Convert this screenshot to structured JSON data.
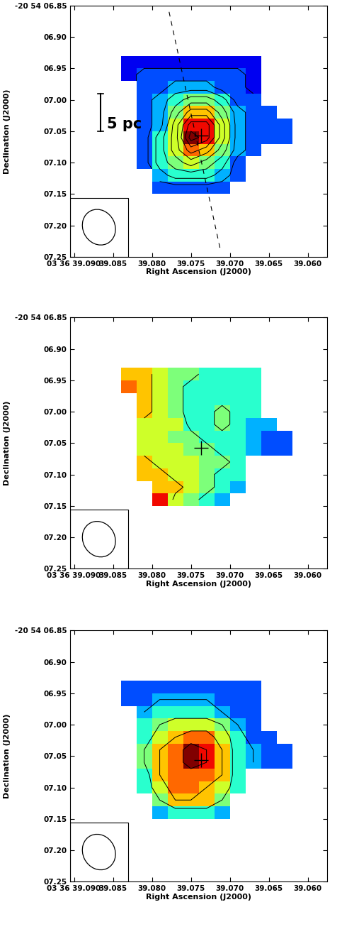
{
  "chart_data": [
    {
      "type": "heatmap",
      "xlabel": "Right Ascension (J2000)",
      "ylabel": "Declination (J2000)",
      "xlim": [
        39.0905,
        39.0575
      ],
      "ylim": [
        7.25,
        6.85
      ],
      "xticks": [
        {
          "value": 39.09,
          "label": "03 36 39.090"
        },
        {
          "value": 39.085,
          "label": "39.085"
        },
        {
          "value": 39.08,
          "label": "39.080"
        },
        {
          "value": 39.075,
          "label": "39.075"
        },
        {
          "value": 39.07,
          "label": "39.070"
        },
        {
          "value": 39.065,
          "label": "39.065"
        },
        {
          "value": 39.06,
          "label": "39.060"
        }
      ],
      "yticks": [
        {
          "value": 6.85,
          "label": "-20 54 06.85"
        },
        {
          "value": 6.9,
          "label": "06.90"
        },
        {
          "value": 6.95,
          "label": "06.95"
        },
        {
          "value": 7.0,
          "label": "07.00"
        },
        {
          "value": 7.05,
          "label": "07.05"
        },
        {
          "value": 7.1,
          "label": "07.10"
        },
        {
          "value": 7.15,
          "label": "07.15"
        },
        {
          "value": 7.2,
          "label": "07.20"
        },
        {
          "value": 7.25,
          "label": "07.25"
        }
      ],
      "x": [
        39.083,
        39.081,
        39.079,
        39.077,
        39.075,
        39.073,
        39.071,
        39.069,
        39.067,
        39.065,
        39.063,
        39.061
      ],
      "y": [
        6.94,
        6.96,
        6.98,
        7.0,
        7.02,
        7.04,
        7.06,
        7.08,
        7.1,
        7.12,
        7.14
      ],
      "cells": [
        [
          1,
          1,
          1,
          1,
          1,
          1,
          1,
          1,
          1,
          null,
          null,
          null
        ],
        [
          1,
          2,
          2,
          2,
          2,
          2,
          2,
          2,
          1,
          null,
          null,
          null
        ],
        [
          null,
          2,
          2,
          3,
          3,
          3,
          2,
          2,
          1,
          null,
          null,
          null
        ],
        [
          null,
          2,
          3,
          4,
          5,
          5,
          4,
          2,
          2,
          null,
          null,
          null
        ],
        [
          null,
          2,
          3,
          5,
          7,
          7,
          5,
          3,
          2,
          2,
          null,
          null
        ],
        [
          null,
          2,
          3,
          6,
          9,
          9,
          6,
          3,
          2,
          2,
          2,
          null
        ],
        [
          null,
          2,
          4,
          6,
          10,
          9,
          6,
          3,
          2,
          2,
          2,
          null
        ],
        [
          null,
          2,
          4,
          6,
          8,
          7,
          5,
          3,
          2,
          null,
          null,
          null
        ],
        [
          null,
          2,
          4,
          5,
          6,
          5,
          4,
          2,
          null,
          null,
          null,
          null
        ],
        [
          null,
          null,
          3,
          4,
          4,
          4,
          3,
          2,
          null,
          null,
          null,
          null
        ],
        [
          null,
          null,
          2,
          2,
          2,
          2,
          2,
          null,
          null,
          null,
          null,
          null
        ]
      ],
      "clim": [
        0,
        10
      ],
      "contour_levels": [
        1.5,
        2.5,
        3.5,
        4.5,
        5.5,
        6.5,
        7.5,
        8.5,
        9.5
      ],
      "center": [
        39.0737,
        7.057
      ],
      "axis_line": {
        "x": [
          39.0778,
          39.0712
        ],
        "y": [
          6.86,
          7.24
        ]
      },
      "scale_bar": {
        "label": "5 pc",
        "x": 39.0866,
        "y": [
          6.99,
          7.05
        ]
      }
    },
    {
      "type": "heatmap",
      "xlabel": "Right Ascension (J2000)",
      "ylabel": "Declination (J2000)",
      "xlim": [
        39.0905,
        39.0575
      ],
      "ylim": [
        7.25,
        6.85
      ],
      "xticks": [
        {
          "value": 39.09,
          "label": "03 36 39.090"
        },
        {
          "value": 39.085,
          "label": "39.085"
        },
        {
          "value": 39.08,
          "label": "39.080"
        },
        {
          "value": 39.075,
          "label": "39.075"
        },
        {
          "value": 39.07,
          "label": "39.070"
        },
        {
          "value": 39.065,
          "label": "39.065"
        },
        {
          "value": 39.06,
          "label": "39.060"
        }
      ],
      "yticks": [
        {
          "value": 6.85,
          "label": "-20 54 06.85"
        },
        {
          "value": 6.9,
          "label": "06.90"
        },
        {
          "value": 6.95,
          "label": "06.95"
        },
        {
          "value": 7.0,
          "label": "07.00"
        },
        {
          "value": 7.05,
          "label": "07.05"
        },
        {
          "value": 7.1,
          "label": "07.10"
        },
        {
          "value": 7.15,
          "label": "07.15"
        },
        {
          "value": 7.2,
          "label": "07.20"
        },
        {
          "value": 7.25,
          "label": "07.25"
        }
      ],
      "x": [
        39.083,
        39.081,
        39.079,
        39.077,
        39.075,
        39.073,
        39.071,
        39.069,
        39.067,
        39.065,
        39.063,
        39.061
      ],
      "y": [
        6.94,
        6.96,
        6.98,
        7.0,
        7.02,
        7.04,
        7.06,
        7.08,
        7.1,
        7.12,
        7.14
      ],
      "cells": [
        [
          7,
          7,
          6,
          5,
          5,
          4,
          4,
          4,
          4,
          null,
          null,
          null
        ],
        [
          8,
          7,
          6,
          5,
          4,
          4,
          4,
          4,
          4,
          null,
          null,
          null
        ],
        [
          null,
          7,
          6,
          5,
          4,
          4,
          4,
          4,
          4,
          null,
          null,
          null
        ],
        [
          null,
          7,
          6,
          5,
          4,
          4,
          5,
          4,
          4,
          null,
          null,
          null
        ],
        [
          null,
          6,
          6,
          6,
          4,
          4,
          5,
          4,
          3,
          3,
          null,
          null
        ],
        [
          null,
          6,
          6,
          5,
          5,
          4,
          4,
          4,
          3,
          2,
          2,
          null
        ],
        [
          null,
          6,
          6,
          6,
          5,
          5,
          4,
          4,
          3,
          2,
          2,
          null
        ],
        [
          null,
          7,
          6,
          6,
          6,
          5,
          5,
          4,
          null,
          null,
          null,
          null
        ],
        [
          null,
          7,
          7,
          6,
          6,
          5,
          4,
          4,
          null,
          null,
          null,
          null
        ],
        [
          null,
          null,
          7,
          7,
          6,
          5,
          4,
          3,
          null,
          null,
          null,
          null
        ],
        [
          null,
          null,
          9,
          6,
          5,
          4,
          3,
          null,
          null,
          null,
          null,
          null
        ]
      ],
      "clim": [
        0,
        10
      ],
      "contour_levels": [
        4.5,
        6.5
      ],
      "center": [
        39.0737,
        7.057
      ]
    },
    {
      "type": "heatmap",
      "xlabel": "Right Ascension (J2000)",
      "ylabel": "Declination (J2000)",
      "xlim": [
        39.0905,
        39.0575
      ],
      "ylim": [
        7.25,
        6.85
      ],
      "xticks": [
        {
          "value": 39.09,
          "label": "03 36 39.090"
        },
        {
          "value": 39.085,
          "label": "39.085"
        },
        {
          "value": 39.08,
          "label": "39.080"
        },
        {
          "value": 39.075,
          "label": "39.075"
        },
        {
          "value": 39.07,
          "label": "39.070"
        },
        {
          "value": 39.065,
          "label": "39.065"
        },
        {
          "value": 39.06,
          "label": "39.060"
        }
      ],
      "yticks": [
        {
          "value": 6.85,
          "label": "-20 54 06.85"
        },
        {
          "value": 6.9,
          "label": "06.90"
        },
        {
          "value": 6.95,
          "label": "06.95"
        },
        {
          "value": 7.0,
          "label": "07.00"
        },
        {
          "value": 7.05,
          "label": "07.05"
        },
        {
          "value": 7.1,
          "label": "07.10"
        },
        {
          "value": 7.15,
          "label": "07.15"
        },
        {
          "value": 7.2,
          "label": "07.20"
        },
        {
          "value": 7.25,
          "label": "07.25"
        }
      ],
      "x": [
        39.083,
        39.081,
        39.079,
        39.077,
        39.075,
        39.073,
        39.071,
        39.069,
        39.067,
        39.065,
        39.063,
        39.061
      ],
      "y": [
        6.94,
        6.96,
        6.98,
        7.0,
        7.02,
        7.04,
        7.06,
        7.08,
        7.1,
        7.12,
        7.14
      ],
      "cells": [
        [
          2,
          2,
          2,
          2,
          2,
          2,
          2,
          2,
          2,
          null,
          null,
          null
        ],
        [
          2,
          2,
          3,
          3,
          3,
          3,
          2,
          2,
          2,
          null,
          null,
          null
        ],
        [
          null,
          3,
          4,
          4,
          4,
          4,
          3,
          2,
          2,
          null,
          null,
          null
        ],
        [
          null,
          4,
          5,
          6,
          6,
          6,
          5,
          3,
          2,
          null,
          null,
          null
        ],
        [
          null,
          4,
          6,
          7,
          8,
          8,
          6,
          4,
          2,
          2,
          null,
          null
        ],
        [
          null,
          5,
          7,
          8,
          10,
          9,
          7,
          4,
          3,
          2,
          2,
          null
        ],
        [
          null,
          5,
          7,
          8,
          10,
          9,
          7,
          4,
          3,
          2,
          2,
          null
        ],
        [
          null,
          4,
          7,
          8,
          8,
          8,
          7,
          4,
          null,
          null,
          null,
          null
        ],
        [
          null,
          4,
          6,
          8,
          8,
          7,
          6,
          4,
          null,
          null,
          null,
          null
        ],
        [
          null,
          null,
          5,
          7,
          7,
          7,
          5,
          null,
          null,
          null,
          null,
          null
        ],
        [
          null,
          null,
          3,
          4,
          4,
          4,
          3,
          null,
          null,
          null,
          null,
          null
        ]
      ],
      "clim": [
        0,
        10
      ],
      "contour_levels": [
        3,
        5,
        7,
        9
      ],
      "center": [
        39.0737,
        7.057
      ]
    }
  ]
}
